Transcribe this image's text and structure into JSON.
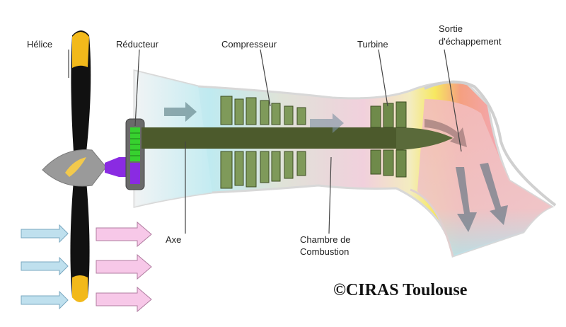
{
  "labels": {
    "helice": "Hélice",
    "reducteur": "Réducteur",
    "compresseur": "Compresseur",
    "turbine": "Turbine",
    "sortie_line1": "Sortie",
    "sortie_line2": "d'échappement",
    "axe": "Axe",
    "chambre_line1": "Chambre de",
    "chambre_line2": "Combustion"
  },
  "credit": "©CIRAS Toulouse",
  "colors": {
    "propeller_blade": "#111111",
    "propeller_tip": "#f2b91b",
    "spinner": "#9a9a9a",
    "gearbox": "#6a6a6a",
    "gear_green": "#37d12f",
    "gear_purple": "#8a2be2",
    "shaft": "#4c5a2c",
    "compressor_blade": "#7f9a5a",
    "turbine_hot": "#f6e03a",
    "exhaust_pink": "#f4a9a9",
    "intake_cyan": "#bfeaf0",
    "inflow_arrow": "#bfe0ee",
    "outflow_arrow": "#f7c8e8"
  }
}
